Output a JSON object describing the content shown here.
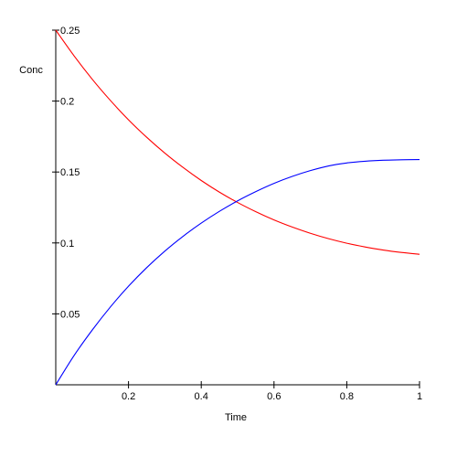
{
  "chart_data": {
    "type": "line",
    "title": "",
    "xlabel": "Time",
    "ylabel": "Conc",
    "xlim": [
      0,
      1
    ],
    "ylim": [
      0,
      0.25
    ],
    "grid": false,
    "x_ticks": [
      {
        "value": 0.2,
        "label": "0.2"
      },
      {
        "value": 0.4,
        "label": "0.4"
      },
      {
        "value": 0.6,
        "label": "0.6"
      },
      {
        "value": 0.8,
        "label": "0.8"
      },
      {
        "value": 1.0,
        "label": "1"
      }
    ],
    "y_ticks": [
      {
        "value": 0.05,
        "label": "0.05"
      },
      {
        "value": 0.1,
        "label": "0.1"
      },
      {
        "value": 0.15,
        "label": "0.15"
      },
      {
        "value": 0.2,
        "label": "0.2"
      },
      {
        "value": 0.25,
        "label": "0.25"
      }
    ],
    "x": [
      0,
      0.05,
      0.1,
      0.15,
      0.2,
      0.25,
      0.3,
      0.35,
      0.4,
      0.45,
      0.5,
      0.55,
      0.6,
      0.65,
      0.7,
      0.75,
      0.8,
      0.85,
      0.9,
      0.95,
      1.0
    ],
    "series": [
      {
        "color": "#ff0000",
        "values": [
          0.25,
          0.232,
          0.2155,
          0.2005,
          0.1868,
          0.1745,
          0.1633,
          0.1532,
          0.144,
          0.1358,
          0.1285,
          0.122,
          0.1162,
          0.1112,
          0.1068,
          0.103,
          0.0998,
          0.0972,
          0.095,
          0.0933,
          0.092
        ]
      },
      {
        "color": "#0000ff",
        "values": [
          0.0,
          0.0205,
          0.0385,
          0.0548,
          0.0695,
          0.0826,
          0.0943,
          0.1047,
          0.114,
          0.1223,
          0.1297,
          0.1362,
          0.142,
          0.1469,
          0.151,
          0.1543,
          0.1564,
          0.1576,
          0.1583,
          0.1586,
          0.1588
        ]
      }
    ]
  }
}
